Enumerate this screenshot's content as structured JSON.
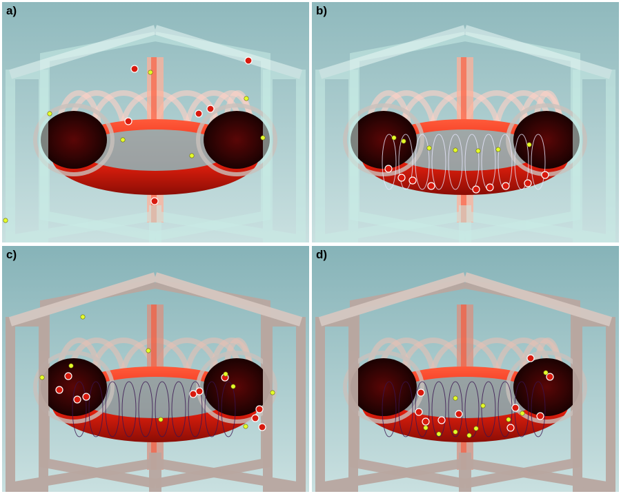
{
  "panels": [
    {
      "label": "a)",
      "frame_color": "#c9ece6",
      "frame_edge": "#e9f8f5",
      "background": "#8fb9bd",
      "field_lines": false
    },
    {
      "label": "b)",
      "frame_color": "#c9ece6",
      "frame_edge": "#e9f8f5",
      "background": "#8fb9bd",
      "field_lines": true
    },
    {
      "label": "c)",
      "frame_color": "#b9a7a0",
      "frame_edge": "#d6c7c0",
      "background": "#86b3b8",
      "field_lines": true
    },
    {
      "label": "d)",
      "frame_color": "#b9a7a0",
      "frame_edge": "#d6c7c0",
      "background": "#86b3b8",
      "field_lines": true
    }
  ],
  "colors": {
    "plasma": "#e8200e",
    "plasma_dark": "#5a0606",
    "ion": "#e5ff2a",
    "electron": "#d81a0e"
  }
}
